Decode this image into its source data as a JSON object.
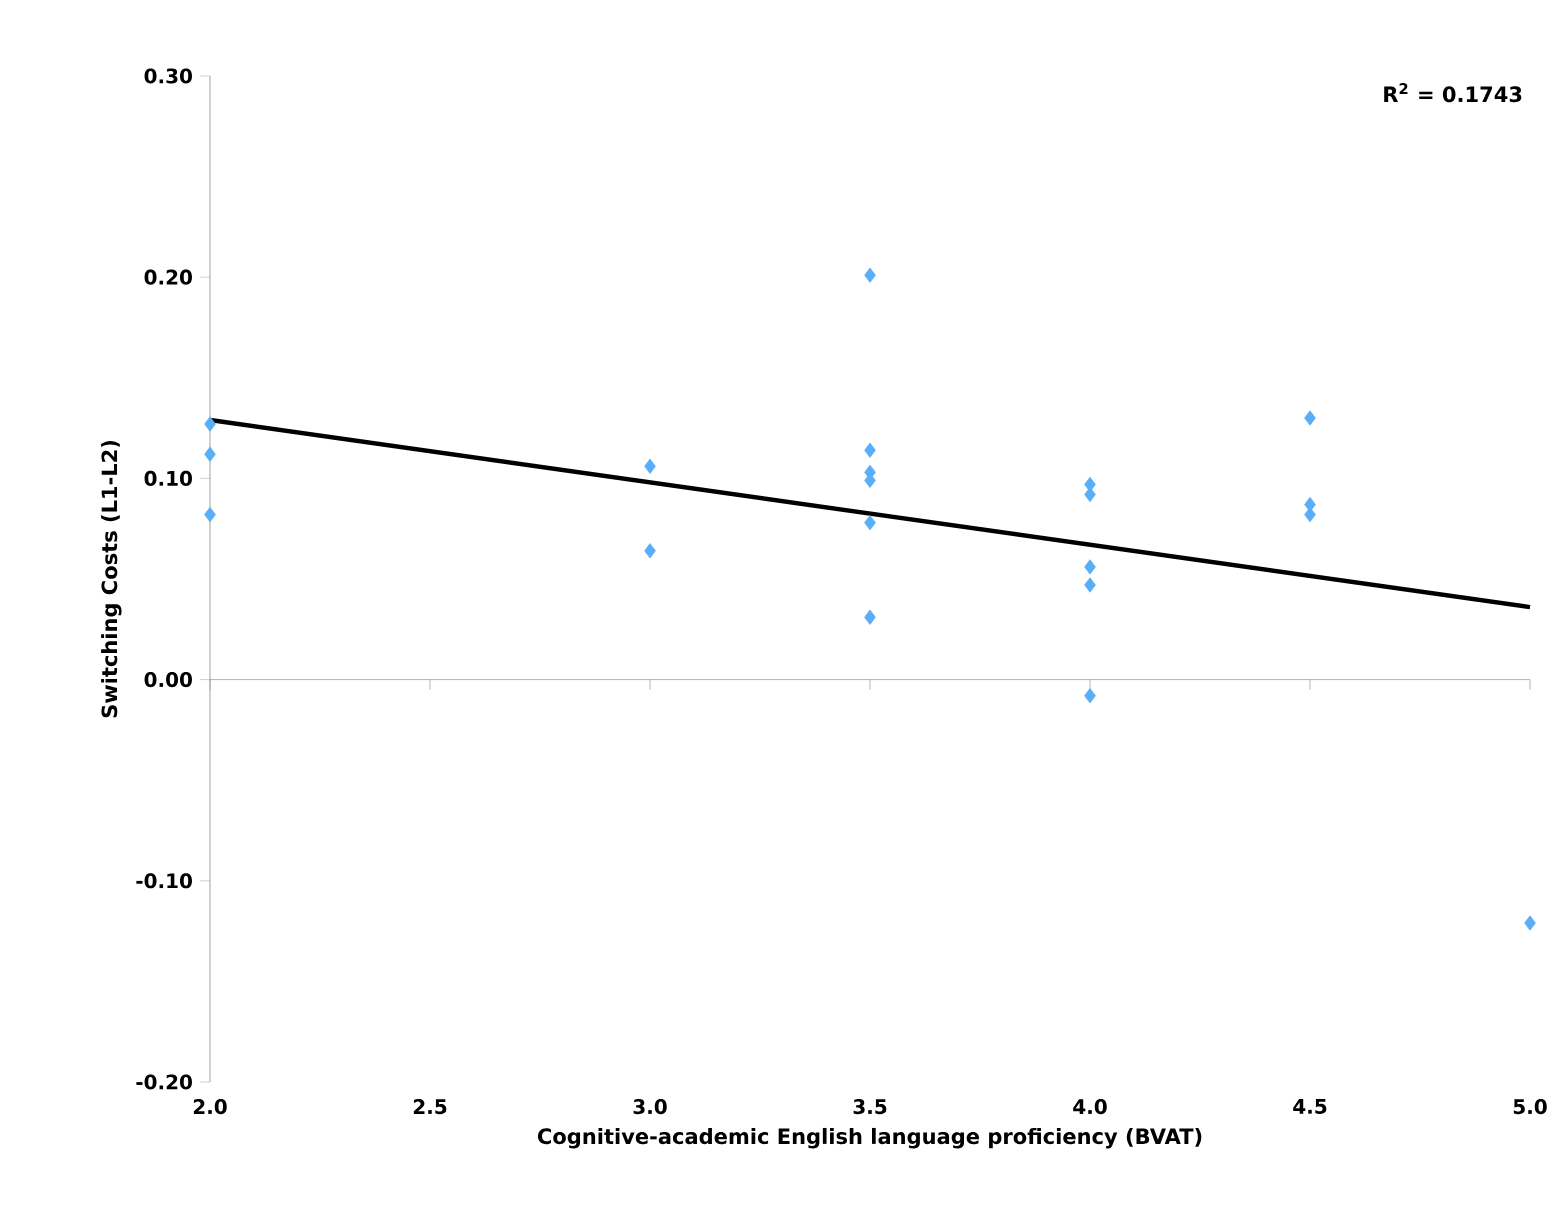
{
  "chart_data": {
    "type": "scatter",
    "xlabel": "Cognitive-academic English language proficiency (BVAT)",
    "ylabel": "Switching Costs (L1-L2)",
    "annotations": [
      "R$^{2}$ = 0.1743"
    ],
    "xlim": [
      2,
      5
    ],
    "ylim": [
      -0.2,
      0.3
    ],
    "xticks": [
      {
        "value": 2,
        "label": "2.0"
      },
      {
        "value": 2.5,
        "label": "2.5"
      },
      {
        "value": 3,
        "label": "3.0"
      },
      {
        "value": 3.5,
        "label": "3.5"
      },
      {
        "value": 4,
        "label": "4.0"
      },
      {
        "value": 4.5,
        "label": "4.5"
      },
      {
        "value": 5,
        "label": "5.0"
      }
    ],
    "yticks": [
      {
        "value": -0.2,
        "label": "-0.20"
      },
      {
        "value": -0.1,
        "label": "-0.10"
      },
      {
        "value": 0,
        "label": "0.00"
      },
      {
        "value": 0.1,
        "label": "0.10"
      },
      {
        "value": 0.2,
        "label": "0.20"
      },
      {
        "value": 0.3,
        "label": "0.30"
      }
    ],
    "marker": "diamond",
    "ref_lines": [
      {
        "axis": "y",
        "value": 0,
        "color": "#a0a0a0"
      }
    ],
    "series": [
      {
        "type": "scatter",
        "color": "#5aaef8",
        "x": [
          2,
          2,
          2,
          3,
          3,
          3.5,
          3.5,
          3.5,
          3.5,
          3.5,
          3.5,
          4,
          4,
          4,
          4,
          4,
          4.5,
          4.5,
          4.5,
          5
        ],
        "values": [
          0.127,
          0.112,
          0.082,
          0.106,
          0.064,
          0.201,
          0.114,
          0.103,
          0.099,
          0.078,
          0.031,
          0.097,
          0.092,
          0.056,
          0.047,
          -0.008,
          0.13,
          0.087,
          0.082,
          -0.121
        ]
      },
      {
        "type": "line",
        "color": "#000000",
        "marker": "none",
        "x": [
          2,
          5
        ],
        "values": [
          0.129,
          0.036
        ]
      }
    ]
  }
}
